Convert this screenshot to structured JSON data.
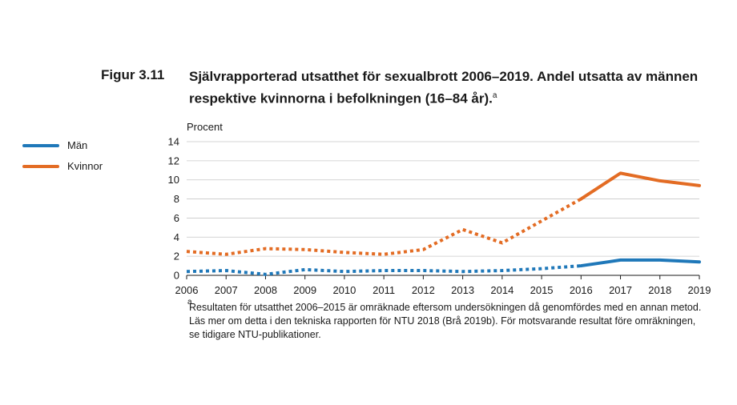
{
  "figure": {
    "label": "Figur 3.11",
    "title": "Självrapporterad utsatthet för sexualbrott 2006–2019. Andel utsatta av männen respektive kvinnorna i befolkningen (16–84 år).",
    "title_footnote_mark": "a"
  },
  "legend": [
    {
      "label": "Män",
      "color": "#1f78b9"
    },
    {
      "label": "Kvinnor",
      "color": "#e36c24"
    }
  ],
  "footnote": {
    "mark": "a",
    "text": "Resultaten för utsatthet 2006–2015 är omräknade eftersom undersökningen då genomfördes med en annan metod. Läs mer om detta i den tekniska rapporten för NTU 2018 (Brå 2019b). För motsvarande resultat före omräkningen, se tidigare NTU-publikationer."
  },
  "chart_data": {
    "type": "line",
    "ylabel": "Procent",
    "xlabel": "",
    "ylim": [
      0,
      14
    ],
    "yticks": [
      0,
      2,
      4,
      6,
      8,
      10,
      12,
      14
    ],
    "x": [
      2006,
      2007,
      2008,
      2009,
      2010,
      2011,
      2012,
      2013,
      2014,
      2015,
      2016,
      2017,
      2018,
      2019
    ],
    "grid": true,
    "legend_position": "left",
    "dotted_through": 2016,
    "series": [
      {
        "name": "Män",
        "color": "#1f78b9",
        "values": [
          0.4,
          0.5,
          0.1,
          0.6,
          0.4,
          0.5,
          0.5,
          0.4,
          0.5,
          0.7,
          1.0,
          1.6,
          1.6,
          1.4
        ]
      },
      {
        "name": "Kvinnor",
        "color": "#e36c24",
        "values": [
          2.5,
          2.2,
          2.8,
          2.7,
          2.4,
          2.2,
          2.7,
          4.8,
          3.4,
          5.7,
          8.0,
          10.7,
          9.9,
          9.4
        ]
      }
    ]
  }
}
